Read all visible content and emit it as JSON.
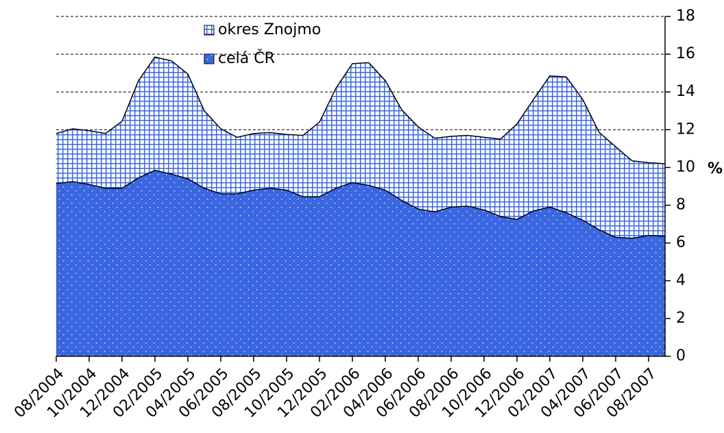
{
  "chart_data": {
    "type": "area",
    "y_label": "%",
    "categories": [
      "08/2004",
      null,
      "10/2004",
      null,
      "12/2004",
      null,
      "02/2005",
      null,
      "04/2005",
      null,
      "06/2005",
      null,
      "08/2005",
      null,
      "10/2005",
      null,
      "12/2005",
      null,
      "02/2006",
      null,
      "04/2006",
      null,
      "06/2006",
      null,
      "08/2006",
      null,
      "10/2006",
      null,
      "12/2006",
      null,
      "02/2007",
      null,
      "04/2007",
      null,
      "06/2007",
      null,
      "08/2007",
      null
    ],
    "series": [
      {
        "name": "okres Znojmo",
        "color": "#3a66e0",
        "values": [
          11.8,
          12.05,
          11.95,
          11.8,
          12.45,
          14.6,
          15.85,
          15.65,
          14.95,
          13.0,
          12.05,
          11.6,
          11.8,
          11.85,
          11.75,
          11.7,
          12.4,
          14.2,
          15.5,
          15.55,
          14.6,
          13.05,
          12.15,
          11.55,
          11.65,
          11.7,
          11.6,
          11.5,
          12.3,
          13.6,
          14.85,
          14.8,
          13.6,
          11.85,
          11.1,
          10.35,
          10.25,
          10.2
        ]
      },
      {
        "name": "celá ČR",
        "color": "#3a66e0",
        "values": [
          9.15,
          9.25,
          9.1,
          8.9,
          8.9,
          9.45,
          9.85,
          9.65,
          9.4,
          8.9,
          8.6,
          8.6,
          8.8,
          8.9,
          8.8,
          8.45,
          8.45,
          8.9,
          9.2,
          9.05,
          8.8,
          8.25,
          7.8,
          7.65,
          7.9,
          7.95,
          7.75,
          7.4,
          7.25,
          7.7,
          7.9,
          7.6,
          7.2,
          6.7,
          6.3,
          6.25,
          6.4,
          6.35
        ]
      }
    ],
    "ylim": [
      0,
      18
    ],
    "yticks": [
      0,
      2,
      4,
      6,
      8,
      10,
      12,
      14,
      16,
      18
    ],
    "grid": true,
    "legend": "top"
  }
}
